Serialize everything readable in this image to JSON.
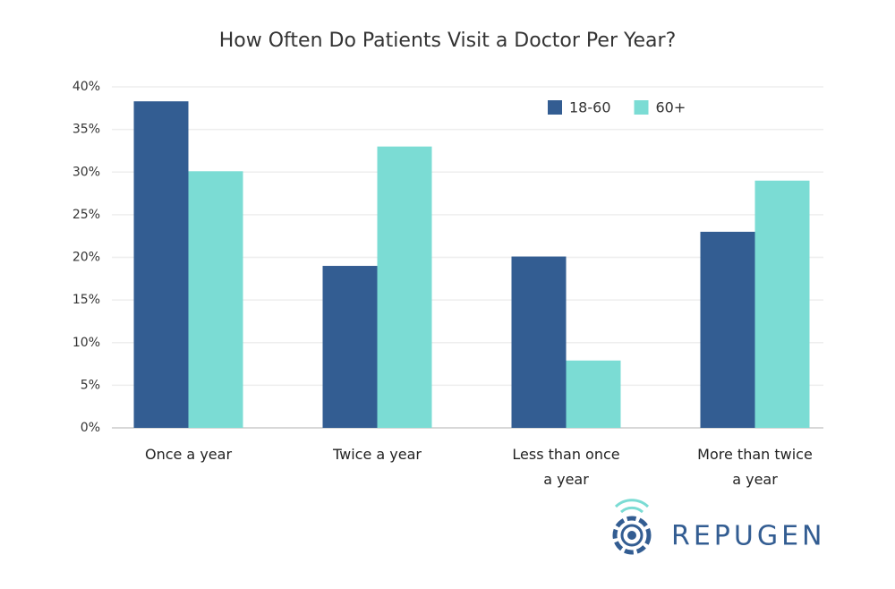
{
  "chart_data": {
    "type": "bar",
    "title": "How Often Do Patients Visit a Doctor Per Year?",
    "categories": [
      "Once a year",
      "Twice a year",
      "Less than once a year",
      "More than twice a year"
    ],
    "series": [
      {
        "name": "18-60",
        "color": "#335d92",
        "values": [
          38.3,
          19,
          20.1,
          23
        ]
      },
      {
        "name": "60+",
        "color": "#7bdcd4",
        "values": [
          30.1,
          33,
          7.9,
          29
        ]
      }
    ],
    "ylim": [
      0,
      40
    ],
    "yticks": [
      {
        "value": 0,
        "label": "0%"
      },
      {
        "value": 5,
        "label": "5%"
      },
      {
        "value": 10,
        "label": "10%"
      },
      {
        "value": 15,
        "label": "15%"
      },
      {
        "value": 20,
        "label": "20%"
      },
      {
        "value": 25,
        "label": "25%"
      },
      {
        "value": 30,
        "label": "30%"
      },
      {
        "value": 35,
        "label": "35%"
      },
      {
        "value": 40,
        "label": "40%"
      }
    ],
    "grid": true,
    "legend": "top-right"
  },
  "logo": "REPUGEN"
}
